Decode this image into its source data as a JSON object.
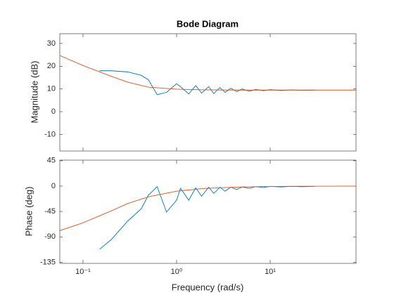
{
  "chart_data": [
    {
      "type": "line",
      "title": "Bode Diagram",
      "ylabel": "Magnitude (dB)",
      "xscale": "log",
      "grid": false,
      "xlim": [
        0.0565,
        82.6
      ],
      "xticks": [
        0.1,
        1,
        10
      ],
      "ylim": [
        -17.3,
        34.3
      ],
      "yticks": [
        -10,
        0,
        10,
        20,
        30
      ],
      "series": [
        {
          "color": "#0072bd",
          "x": [
            0.15,
            0.2,
            0.3,
            0.42,
            0.5,
            0.62,
            0.78,
            1.0,
            1.1,
            1.35,
            1.6,
            1.85,
            2.2,
            2.5,
            2.9,
            3.3,
            3.8,
            4.4,
            5,
            6,
            7,
            8.5,
            10,
            13,
            17,
            22,
            30
          ],
          "values": [
            18,
            18,
            17.5,
            16,
            14,
            7.5,
            8.5,
            12.3,
            11,
            7.8,
            11.5,
            8.2,
            11,
            8,
            10.6,
            8.5,
            10.3,
            8.8,
            10,
            9,
            9.8,
            9.2,
            9.7,
            9.3,
            9.6,
            9.4,
            9.5
          ]
        },
        {
          "color": "#d95319",
          "x": [
            0.0565,
            0.1,
            0.2,
            0.3,
            0.5,
            1,
            2,
            5,
            10,
            20,
            50,
            82.6
          ],
          "values": [
            24.7,
            20.3,
            15.6,
            13,
            10.8,
            9.9,
            9.6,
            9.5,
            9.5,
            9.5,
            9.5,
            9.5
          ]
        }
      ]
    },
    {
      "type": "line",
      "xlabel": "Frequency  (rad/s)",
      "ylabel": "Phase (deg)",
      "xscale": "log",
      "grid": false,
      "xlim": [
        0.0565,
        82.6
      ],
      "xticks": [
        {
          "value": 0.1,
          "label": "10⁻¹"
        },
        {
          "value": 1,
          "label": "10⁰"
        },
        {
          "value": 10,
          "label": "10¹"
        }
      ],
      "ylim": [
        -137,
        46
      ],
      "yticks": [
        -135,
        -90,
        -45,
        0,
        45
      ],
      "series": [
        {
          "color": "#0072bd",
          "x": [
            0.15,
            0.2,
            0.3,
            0.42,
            0.5,
            0.62,
            0.78,
            1.0,
            1.1,
            1.35,
            1.6,
            1.85,
            2.2,
            2.5,
            2.9,
            3.3,
            3.8,
            4.4,
            5,
            6,
            7,
            8.5,
            10,
            13,
            17,
            22,
            30
          ],
          "values": [
            -112,
            -95,
            -62,
            -40,
            -16,
            -1,
            -46,
            -25,
            -4,
            -25,
            -3,
            -18,
            -2,
            -13,
            -2,
            -9,
            -2,
            -6,
            -1.5,
            -4,
            -1,
            -2.5,
            -0.5,
            -1.5,
            -0.5,
            -1,
            -0.5
          ]
        },
        {
          "color": "#d95319",
          "x": [
            0.0565,
            0.1,
            0.2,
            0.3,
            0.5,
            1,
            2,
            5,
            10,
            20,
            50,
            82.6
          ],
          "values": [
            -79,
            -65,
            -44,
            -31,
            -19,
            -9,
            -4,
            -1.5,
            -0.7,
            -0.3,
            -0.1,
            0
          ]
        }
      ]
    }
  ]
}
